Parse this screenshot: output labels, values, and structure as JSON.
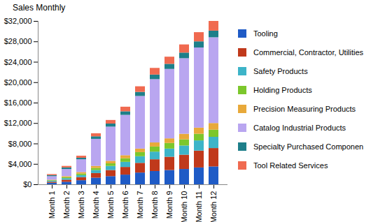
{
  "chart_data": {
    "type": "bar",
    "title": "Sales Monthly",
    "categories": [
      "Month 1",
      "Month 2",
      "Month 3",
      "Month 4",
      "Month 5",
      "Month 6",
      "Month 7",
      "Month 8",
      "Month 9",
      "Month 10",
      "Month 11",
      "Month 12"
    ],
    "series": [
      {
        "name": "Tooling",
        "color": "#1f5bc6",
        "values": [
          300,
          500,
          800,
          1300,
          1600,
          1900,
          2300,
          2600,
          2800,
          3000,
          3300,
          3500
        ]
      },
      {
        "name": "Commercial, Contractor, Utilities",
        "color": "#c0391b",
        "values": [
          200,
          400,
          600,
          900,
          1200,
          1500,
          1900,
          2300,
          2600,
          2800,
          3300,
          3600
        ]
      },
      {
        "name": "Safety Products",
        "color": "#3db4c8",
        "values": [
          200,
          300,
          400,
          600,
          800,
          1000,
          1300,
          1500,
          1600,
          1800,
          2000,
          2200
        ]
      },
      {
        "name": "Holding Products",
        "color": "#7cc72c",
        "values": [
          100,
          200,
          300,
          400,
          500,
          700,
          800,
          1000,
          1100,
          1200,
          1300,
          1400
        ]
      },
      {
        "name": "Precision Measuring Products",
        "color": "#e8a93a",
        "values": [
          100,
          200,
          300,
          400,
          500,
          600,
          700,
          800,
          900,
          1100,
          1200,
          1300
        ]
      },
      {
        "name": "Catalog Industrial Products",
        "color": "#b9a6f0",
        "values": [
          700,
          1400,
          2500,
          5300,
          6700,
          7900,
          10300,
          12400,
          13600,
          14800,
          15700,
          16800
        ]
      },
      {
        "name": "Specialty Purchased Componen",
        "color": "#1e7f8a",
        "values": [
          200,
          300,
          300,
          500,
          600,
          700,
          800,
          900,
          1000,
          1100,
          1200,
          1300
        ]
      },
      {
        "name": "Tool Related Services",
        "color": "#f06a50",
        "values": [
          200,
          300,
          400,
          600,
          700,
          900,
          1100,
          1300,
          1400,
          1600,
          1800,
          1900
        ]
      }
    ],
    "ylim": [
      0,
      32000
    ],
    "yticks": [
      {
        "value": 0,
        "label": "$0"
      },
      {
        "value": 4000,
        "label": "$4,000"
      },
      {
        "value": 8000,
        "label": "$8,000"
      },
      {
        "value": 12000,
        "label": "$12,000"
      },
      {
        "value": 16000,
        "label": "$16,000"
      },
      {
        "value": 20000,
        "label": "$20,000"
      },
      {
        "value": 24000,
        "label": "$24,000"
      },
      {
        "value": 28000,
        "label": "$28,000"
      },
      {
        "value": 32000,
        "label": "$32,000"
      }
    ],
    "stacked": true,
    "legend": "right",
    "grid": false
  }
}
